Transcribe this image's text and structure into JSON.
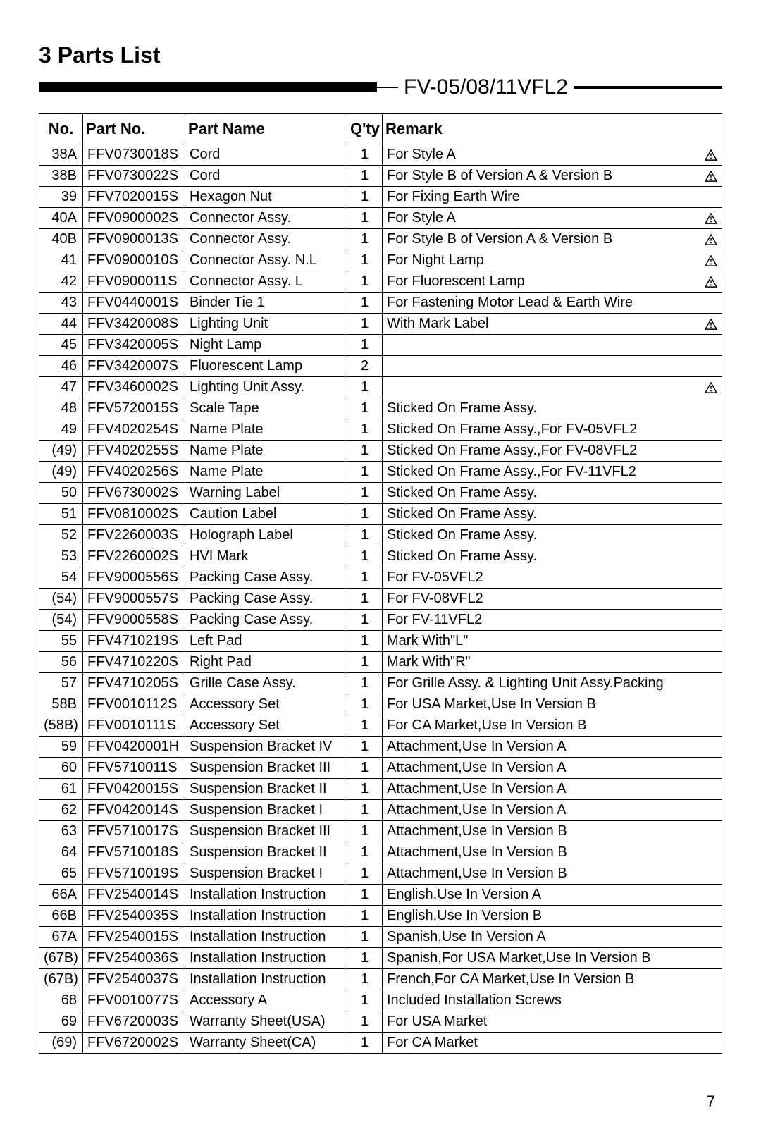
{
  "section_title": "3 Parts List",
  "model_label": "FV-05/08/11VFL2",
  "page_number": "7",
  "columns": {
    "no": "No.",
    "part_no": "Part No.",
    "part_name": "Part Name",
    "qty": "Q'ty",
    "remark": "Remark"
  },
  "rows": [
    {
      "no": "38A",
      "part": "FFV0730018S",
      "name": "Cord",
      "qty": "1",
      "remark": "For Style A",
      "warn": true
    },
    {
      "no": "38B",
      "part": "FFV0730022S",
      "name": "Cord",
      "qty": "1",
      "remark": "For Style B of Version A & Version B",
      "warn": true
    },
    {
      "no": "39",
      "part": "FFV7020015S",
      "name": "Hexagon Nut",
      "qty": "1",
      "remark": "For Fixing Earth Wire",
      "warn": false
    },
    {
      "no": "40A",
      "part": "FFV0900002S",
      "name": "Connector Assy.",
      "qty": "1",
      "remark": "For Style A",
      "warn": true
    },
    {
      "no": "40B",
      "part": "FFV0900013S",
      "name": "Connector Assy.",
      "qty": "1",
      "remark": "For Style B of Version A & Version B",
      "warn": true
    },
    {
      "no": "41",
      "part": "FFV0900010S",
      "name": "Connector Assy. N.L",
      "qty": "1",
      "remark": "For Night Lamp",
      "warn": true
    },
    {
      "no": "42",
      "part": "FFV0900011S",
      "name": "Connector Assy. L",
      "qty": "1",
      "remark": "For Fluorescent Lamp",
      "warn": true
    },
    {
      "no": "43",
      "part": "FFV0440001S",
      "name": "Binder Tie 1",
      "qty": "1",
      "remark": "For Fastening Motor Lead  & Earth Wire",
      "warn": false
    },
    {
      "no": "44",
      "part": "FFV3420008S",
      "name": "Lighting Unit",
      "qty": "1",
      "remark": "With Mark Label",
      "warn": true
    },
    {
      "no": "45",
      "part": "FFV3420005S",
      "name": "Night Lamp",
      "qty": "1",
      "remark": "",
      "warn": false
    },
    {
      "no": "46",
      "part": "FFV3420007S",
      "name": "Fluorescent Lamp",
      "qty": "2",
      "remark": "",
      "warn": false
    },
    {
      "no": "47",
      "part": "FFV3460002S",
      "name": "Lighting Unit Assy.",
      "qty": "1",
      "remark": "",
      "warn": true
    },
    {
      "no": "48",
      "part": "FFV5720015S",
      "name": "Scale Tape",
      "qty": "1",
      "remark": "Sticked On Frame Assy.",
      "warn": false
    },
    {
      "no": "49",
      "part": "FFV4020254S",
      "name": "Name Plate",
      "qty": "1",
      "remark": "Sticked On Frame Assy.,For FV-05VFL2",
      "warn": false
    },
    {
      "no": "(49)",
      "part": "FFV4020255S",
      "name": "Name Plate",
      "qty": "1",
      "remark": "Sticked On Frame Assy.,For FV-08VFL2",
      "warn": false
    },
    {
      "no": "(49)",
      "part": "FFV4020256S",
      "name": "Name Plate",
      "qty": "1",
      "remark": "Sticked On Frame Assy.,For FV-11VFL2",
      "warn": false
    },
    {
      "no": "50",
      "part": "FFV6730002S",
      "name": "Warning Label",
      "qty": "1",
      "remark": "Sticked On Frame Assy.",
      "warn": false
    },
    {
      "no": "51",
      "part": "FFV0810002S",
      "name": "Caution Label",
      "qty": "1",
      "remark": "Sticked On Frame Assy.",
      "warn": false
    },
    {
      "no": "52",
      "part": "FFV2260003S",
      "name": "Holograph Label",
      "qty": "1",
      "remark": "Sticked On Frame Assy.",
      "warn": false
    },
    {
      "no": "53",
      "part": "FFV2260002S",
      "name": "HVI Mark",
      "qty": "1",
      "remark": "Sticked On Frame Assy.",
      "warn": false
    },
    {
      "no": "54",
      "part": "FFV9000556S",
      "name": "Packing Case Assy.",
      "qty": "1",
      "remark": "For FV-05VFL2",
      "warn": false
    },
    {
      "no": "(54)",
      "part": "FFV9000557S",
      "name": "Packing Case Assy.",
      "qty": "1",
      "remark": "For FV-08VFL2",
      "warn": false
    },
    {
      "no": "(54)",
      "part": "FFV9000558S",
      "name": "Packing Case Assy.",
      "qty": "1",
      "remark": "For FV-11VFL2",
      "warn": false
    },
    {
      "no": "55",
      "part": "FFV4710219S",
      "name": "Left Pad",
      "qty": "1",
      "remark": "Mark With\"L\"",
      "warn": false
    },
    {
      "no": "56",
      "part": "FFV4710220S",
      "name": "Right Pad",
      "qty": "1",
      "remark": "Mark With\"R\"",
      "warn": false
    },
    {
      "no": "57",
      "part": "FFV4710205S",
      "name": "Grille Case Assy.",
      "qty": "1",
      "remark": "For Grille Assy. & Lighting Unit Assy.Packing",
      "warn": false
    },
    {
      "no": "58B",
      "part": "FFV0010112S",
      "name": "Accessory Set",
      "qty": "1",
      "remark": "For USA Market,Use In Version B",
      "warn": false
    },
    {
      "no": "(58B)",
      "part": "FFV0010111S",
      "name": "Accessory Set",
      "qty": "1",
      "remark": "For CA Market,Use In Version B",
      "warn": false
    },
    {
      "no": "59",
      "part": "FFV0420001H",
      "name": "Suspension Bracket IV",
      "qty": "1",
      "remark": "Attachment,Use In Version A",
      "warn": false
    },
    {
      "no": "60",
      "part": "FFV5710011S",
      "name": "Suspension Bracket III",
      "qty": "1",
      "remark": "Attachment,Use In Version A",
      "warn": false
    },
    {
      "no": "61",
      "part": "FFV0420015S",
      "name": "Suspension Bracket II",
      "qty": "1",
      "remark": "Attachment,Use In Version A",
      "warn": false
    },
    {
      "no": "62",
      "part": "FFV0420014S",
      "name": "Suspension Bracket I",
      "qty": "1",
      "remark": "Attachment,Use In Version A",
      "warn": false
    },
    {
      "no": "63",
      "part": "FFV5710017S",
      "name": "Suspension Bracket III",
      "qty": "1",
      "remark": "Attachment,Use In Version B",
      "warn": false
    },
    {
      "no": "64",
      "part": "FFV5710018S",
      "name": "Suspension Bracket II",
      "qty": "1",
      "remark": "Attachment,Use In Version B",
      "warn": false
    },
    {
      "no": "65",
      "part": "FFV5710019S",
      "name": "Suspension Bracket I",
      "qty": "1",
      "remark": "Attachment,Use In Version B",
      "warn": false
    },
    {
      "no": "66A",
      "part": "FFV2540014S",
      "name": "Installation Instruction",
      "qty": "1",
      "remark": "English,Use In Version A",
      "warn": false
    },
    {
      "no": "66B",
      "part": "FFV2540035S",
      "name": "Installation Instruction",
      "qty": "1",
      "remark": "English,Use In Version B",
      "warn": false
    },
    {
      "no": "67A",
      "part": "FFV2540015S",
      "name": "Installation Instruction",
      "qty": "1",
      "remark": "Spanish,Use In Version A",
      "warn": false
    },
    {
      "no": "(67B)",
      "part": "FFV2540036S",
      "name": "Installation Instruction",
      "qty": "1",
      "remark": "Spanish,For USA Market,Use In Version B",
      "warn": false
    },
    {
      "no": "(67B)",
      "part": "FFV2540037S",
      "name": "Installation Instruction",
      "qty": "1",
      "remark": "French,For CA Market,Use In Version B",
      "warn": false
    },
    {
      "no": "68",
      "part": "FFV0010077S",
      "name": "Accessory A",
      "qty": "1",
      "remark": "Included Installation Screws",
      "warn": false
    },
    {
      "no": "69",
      "part": "FFV6720003S",
      "name": "Warranty Sheet(USA)",
      "qty": "1",
      "remark": "For USA Market",
      "warn": false
    },
    {
      "no": "(69)",
      "part": "FFV6720002S",
      "name": "Warranty Sheet(CA)",
      "qty": "1",
      "remark": "For CA Market",
      "warn": false
    }
  ]
}
